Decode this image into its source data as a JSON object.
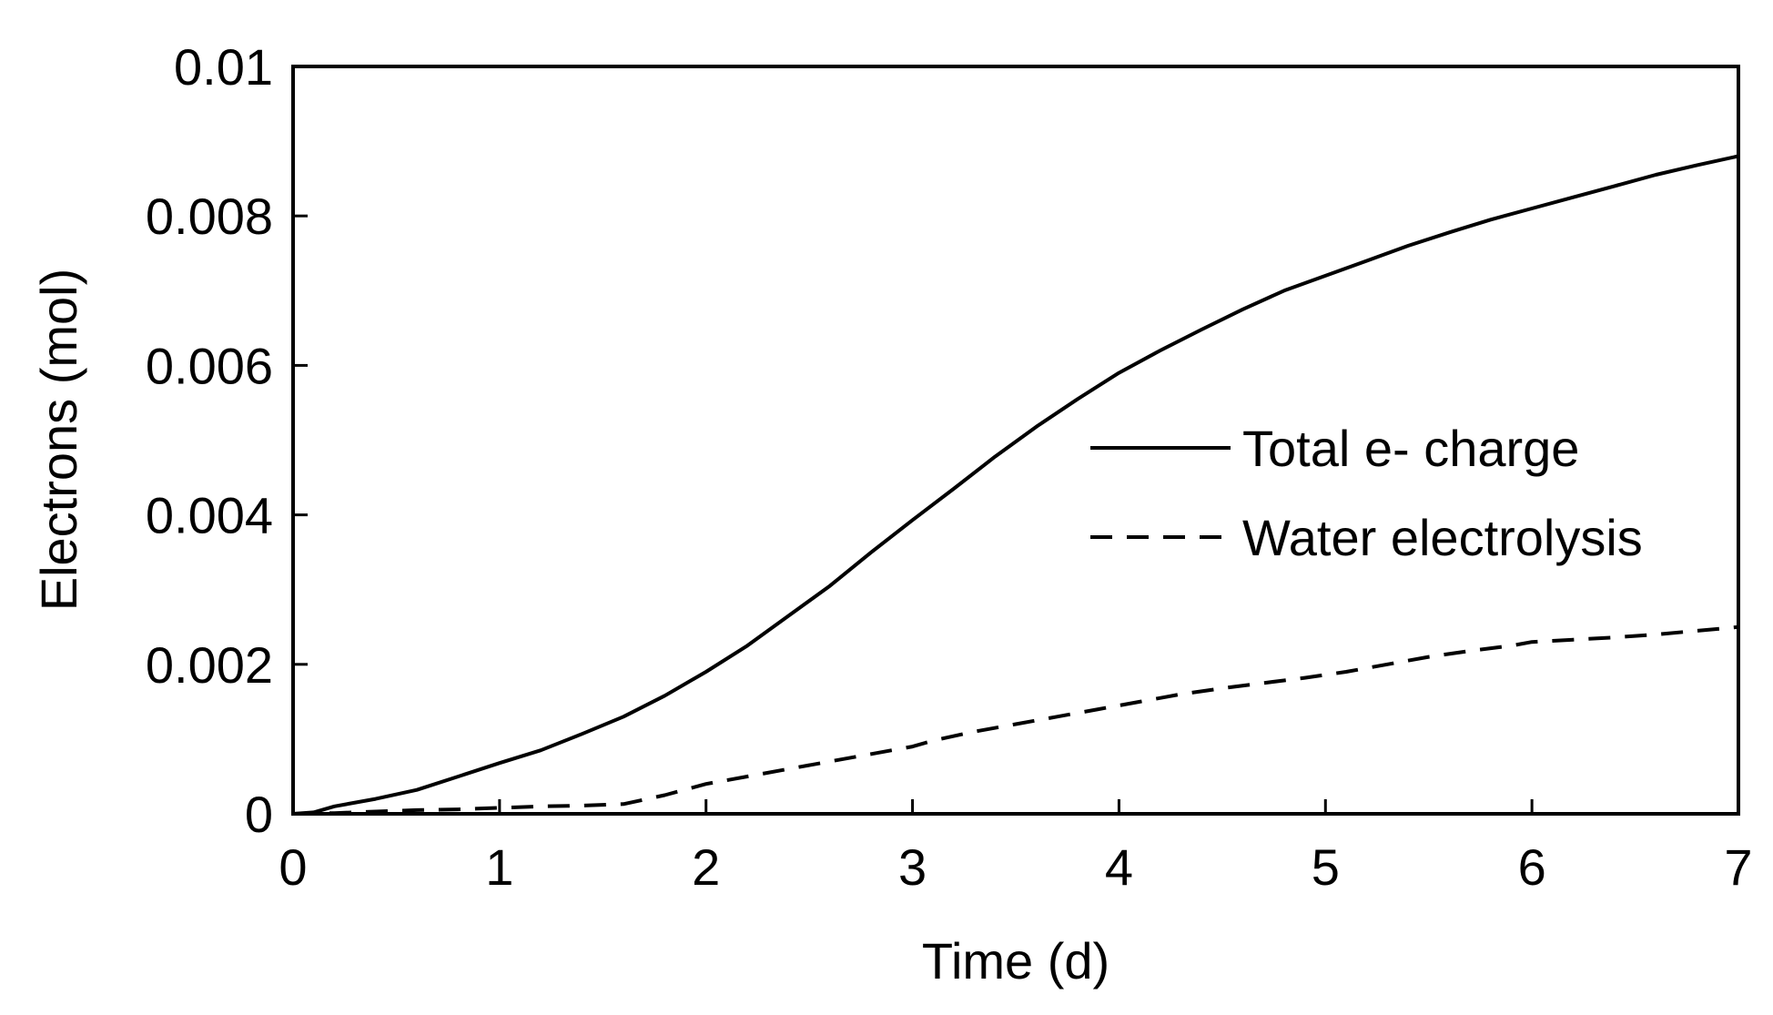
{
  "chart_data": {
    "type": "line",
    "title": "",
    "xlabel": "Time (d)",
    "ylabel": "Electrons (mol)",
    "xlim": [
      0,
      7
    ],
    "ylim": [
      0,
      0.01
    ],
    "grid": false,
    "legend_position": "center-right",
    "x_ticks": [
      {
        "value": 0,
        "label": "0"
      },
      {
        "value": 1,
        "label": "1"
      },
      {
        "value": 2,
        "label": "2"
      },
      {
        "value": 3,
        "label": "3"
      },
      {
        "value": 4,
        "label": "4"
      },
      {
        "value": 5,
        "label": "5"
      },
      {
        "value": 6,
        "label": "6"
      },
      {
        "value": 7,
        "label": "7"
      }
    ],
    "y_ticks": [
      {
        "value": 0,
        "label": "0"
      },
      {
        "value": 0.002,
        "label": "0.002"
      },
      {
        "value": 0.004,
        "label": "0.004"
      },
      {
        "value": 0.006,
        "label": "0.006"
      },
      {
        "value": 0.008,
        "label": "0.008"
      },
      {
        "value": 0.01,
        "label": "0.01"
      }
    ],
    "series": [
      {
        "name": "Total e- charge",
        "style": "solid",
        "color": "#000000",
        "x": [
          0,
          0.1,
          0.2,
          0.4,
          0.6,
          0.8,
          1.0,
          1.2,
          1.4,
          1.6,
          1.8,
          2.0,
          2.2,
          2.4,
          2.6,
          2.8,
          3.0,
          3.2,
          3.4,
          3.6,
          3.8,
          4.0,
          4.2,
          4.4,
          4.6,
          4.8,
          5.0,
          5.2,
          5.4,
          5.6,
          5.8,
          6.0,
          6.2,
          6.4,
          6.6,
          6.8,
          7.0
        ],
        "y": [
          0,
          2e-05,
          0.0001,
          0.0002,
          0.00032,
          0.0005,
          0.00068,
          0.00085,
          0.00107,
          0.0013,
          0.00158,
          0.0019,
          0.00225,
          0.00265,
          0.00305,
          0.0035,
          0.00393,
          0.00435,
          0.00478,
          0.00518,
          0.00555,
          0.0059,
          0.0062,
          0.00648,
          0.00675,
          0.007,
          0.0072,
          0.0074,
          0.0076,
          0.00778,
          0.00795,
          0.0081,
          0.00825,
          0.0084,
          0.00855,
          0.00868,
          0.0088
        ]
      },
      {
        "name": "Water electrolysis",
        "style": "dashed",
        "color": "#000000",
        "x": [
          0,
          0.2,
          0.4,
          0.6,
          0.8,
          1.0,
          1.2,
          1.4,
          1.6,
          1.8,
          2.0,
          2.2,
          2.4,
          2.6,
          2.8,
          3.0,
          3.1,
          3.3,
          3.5,
          3.7,
          3.9,
          4.1,
          4.3,
          4.5,
          4.7,
          4.9,
          5.1,
          5.3,
          5.5,
          5.7,
          5.9,
          6.0,
          6.2,
          6.4,
          6.6,
          6.8,
          7.0
        ],
        "y": [
          0,
          1e-05,
          3e-05,
          5e-05,
          6e-05,
          8e-05,
          0.0001,
          0.00011,
          0.00013,
          0.00025,
          0.0004,
          0.0005,
          0.0006,
          0.0007,
          0.0008,
          0.0009,
          0.00098,
          0.0011,
          0.0012,
          0.0013,
          0.0014,
          0.0015,
          0.0016,
          0.00168,
          0.00175,
          0.00182,
          0.0019,
          0.002,
          0.0021,
          0.00218,
          0.00225,
          0.0023,
          0.00233,
          0.00236,
          0.0024,
          0.00245,
          0.0025
        ]
      }
    ]
  }
}
